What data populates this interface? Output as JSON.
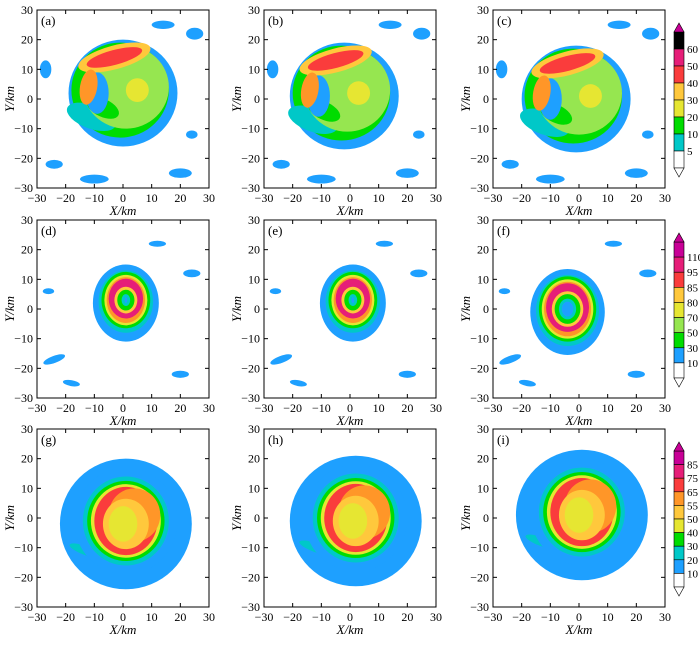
{
  "colors": {
    "levels": [
      "#ffffff",
      "#1ea0ff",
      "#00c8c8",
      "#00dc00",
      "#96e650",
      "#e6e632",
      "#ffc83c",
      "#ff9628",
      "#fa3c3c",
      "#e61e78",
      "#c80096"
    ],
    "frame": "#000000"
  },
  "chart_data": [
    {
      "type": "heatmap",
      "panel": "(a)",
      "xlabel": "X/km",
      "ylabel": "Y/km",
      "xlim": [
        -30,
        30
      ],
      "ylim": [
        -30,
        30
      ],
      "xticks": [
        -30,
        -20,
        -10,
        0,
        10,
        20,
        30
      ],
      "yticks": [
        -30,
        -20,
        -10,
        0,
        10,
        20,
        30
      ],
      "pattern": "irregular",
      "center": [
        3,
        2
      ]
    },
    {
      "type": "heatmap",
      "panel": "(b)",
      "xlabel": "X/km",
      "ylabel": "Y/km",
      "xlim": [
        -30,
        30
      ],
      "ylim": [
        -30,
        30
      ],
      "xticks": [
        -30,
        -20,
        -10,
        0,
        10,
        20,
        30
      ],
      "yticks": [
        -30,
        -20,
        -10,
        0,
        10,
        20,
        30
      ],
      "pattern": "irregular",
      "center": [
        1,
        1
      ]
    },
    {
      "type": "heatmap",
      "panel": "(c)",
      "xlabel": "X/km",
      "ylabel": "Y/km",
      "xlim": [
        -30,
        30
      ],
      "ylim": [
        -30,
        30
      ],
      "xticks": [
        -30,
        -20,
        -10,
        0,
        10,
        20,
        30
      ],
      "yticks": [
        -30,
        -20,
        -10,
        0,
        10,
        20,
        30
      ],
      "pattern": "irregular",
      "center": [
        2,
        0
      ],
      "colorbar": {
        "ticks": [
          "60",
          "50",
          "40",
          "30",
          "20",
          "10",
          "5"
        ]
      }
    },
    {
      "type": "heatmap",
      "panel": "(d)",
      "xlabel": "X/km",
      "ylabel": "Y/km",
      "xlim": [
        -30,
        30
      ],
      "ylim": [
        -30,
        30
      ],
      "xticks": [
        -30,
        -20,
        -10,
        0,
        10,
        20,
        30
      ],
      "yticks": [
        -30,
        -20,
        -10,
        0,
        10,
        20,
        30
      ],
      "pattern": "ring",
      "center": [
        1,
        3
      ],
      "radius": 6.5
    },
    {
      "type": "heatmap",
      "panel": "(e)",
      "xlabel": "X/km",
      "ylabel": "Y/km",
      "xlim": [
        -30,
        30
      ],
      "ylim": [
        -30,
        30
      ],
      "xticks": [
        -30,
        -20,
        -10,
        0,
        10,
        20,
        30
      ],
      "yticks": [
        -30,
        -20,
        -10,
        0,
        10,
        20,
        30
      ],
      "pattern": "ring",
      "center": [
        1,
        3
      ],
      "radius": 6.5
    },
    {
      "type": "heatmap",
      "panel": "(f)",
      "xlabel": "X/km",
      "ylabel": "Y/km",
      "xlim": [
        -30,
        30
      ],
      "ylim": [
        -30,
        30
      ],
      "xticks": [
        -30,
        -20,
        -10,
        0,
        10,
        20,
        30
      ],
      "yticks": [
        -30,
        -20,
        -10,
        0,
        10,
        20,
        30
      ],
      "pattern": "ring",
      "center": [
        -4,
        0
      ],
      "radius": 8,
      "colorbar": {
        "ticks": [
          "110",
          "95",
          "85",
          "80",
          "70",
          "50",
          "30",
          "10"
        ]
      }
    },
    {
      "type": "heatmap",
      "panel": "(g)",
      "xlabel": "X/km",
      "ylabel": "Y/km",
      "xlim": [
        -30,
        30
      ],
      "ylim": [
        -30,
        30
      ],
      "xticks": [
        -30,
        -20,
        -10,
        0,
        10,
        20,
        30
      ],
      "yticks": [
        -30,
        -20,
        -10,
        0,
        10,
        20,
        30
      ],
      "pattern": "filled",
      "center": [
        1,
        -1
      ],
      "radius": 11
    },
    {
      "type": "heatmap",
      "panel": "(h)",
      "xlabel": "X/km",
      "ylabel": "Y/km",
      "xlim": [
        -30,
        30
      ],
      "ylim": [
        -30,
        30
      ],
      "xticks": [
        -30,
        -20,
        -10,
        0,
        10,
        20,
        30
      ],
      "yticks": [
        -30,
        -20,
        -10,
        0,
        10,
        20,
        30
      ],
      "pattern": "filled",
      "center": [
        2,
        0
      ],
      "radius": 11
    },
    {
      "type": "heatmap",
      "panel": "(i)",
      "xlabel": "X/km",
      "ylabel": "Y/km",
      "xlim": [
        -30,
        30
      ],
      "ylim": [
        -30,
        30
      ],
      "xticks": [
        -30,
        -20,
        -10,
        0,
        10,
        20,
        30
      ],
      "yticks": [
        -30,
        -20,
        -10,
        0,
        10,
        20,
        30
      ],
      "pattern": "filled",
      "center": [
        1,
        2
      ],
      "radius": 11,
      "colorbar": {
        "ticks": [
          "85",
          "75",
          "65",
          "55",
          "50",
          "40",
          "30",
          "20",
          "10"
        ]
      }
    }
  ]
}
